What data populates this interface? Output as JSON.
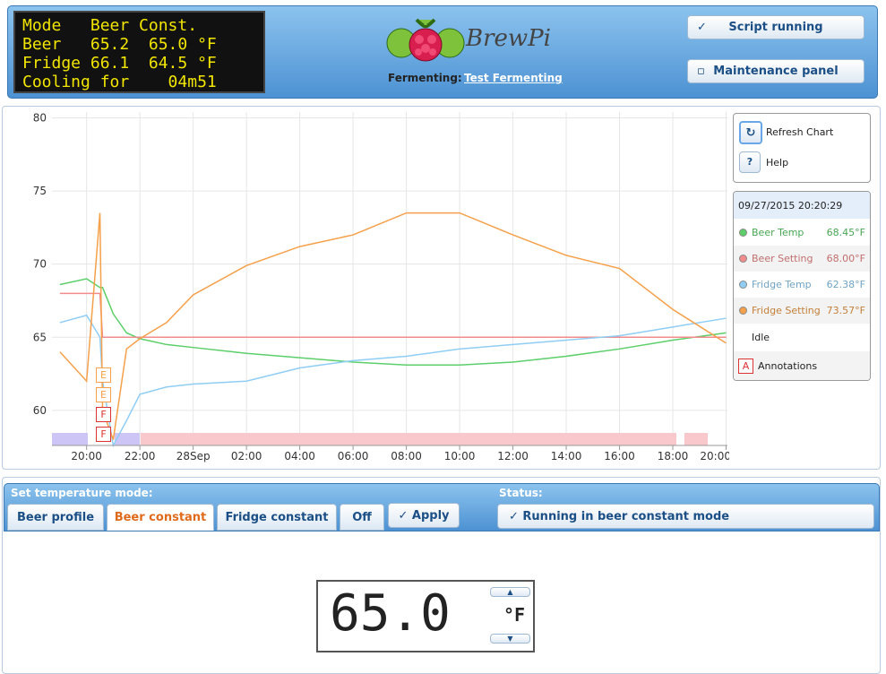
{
  "header": {
    "lcd": [
      "Mode   Beer Const.",
      "Beer   65.2  65.0 °F",
      "Fridge 66.1  64.5 °F",
      "Cooling for    04m51"
    ],
    "logo": "BrewPi",
    "profile_label": "Fermenting:",
    "profile_name": "Test Fermenting",
    "buttons": [
      "Script running",
      "Maintenance panel"
    ]
  },
  "chart_controls": {
    "refresh": "Refresh Chart",
    "help_icon": "?",
    "help": "Help"
  },
  "legend": {
    "date": "09/27/2015 20:20:29",
    "readouts": [
      "68.45°F",
      "68.00°F",
      "62.38°F",
      "73.57°F"
    ],
    "state": "Idle",
    "annotations_icon": "A",
    "annotations": "Annotations"
  },
  "chart_data": {
    "type": "line",
    "annotation_markers": [
      "E",
      "E",
      "F",
      "F"
    ],
    "x": [
      -1,
      0,
      0.5,
      0.6,
      1,
      1.5,
      2,
      3,
      4,
      6,
      8,
      10,
      12,
      14,
      16,
      18,
      20,
      22,
      24
    ],
    "xlim": [
      -1.3,
      24.05
    ],
    "xticks": [
      {
        "value": 0,
        "label": "20:00"
      },
      {
        "value": 2,
        "label": "22:00"
      },
      {
        "value": 4,
        "label": "28Sep"
      },
      {
        "value": 6,
        "label": "02:00"
      },
      {
        "value": 8,
        "label": "04:00"
      },
      {
        "value": 10,
        "label": "06:00"
      },
      {
        "value": 12,
        "label": "08:00"
      },
      {
        "value": 14,
        "label": "10:00"
      },
      {
        "value": 16,
        "label": "12:00"
      },
      {
        "value": 18,
        "label": "14:00"
      },
      {
        "value": 20,
        "label": "16:00"
      },
      {
        "value": 22,
        "label": "18:00"
      },
      {
        "value": 24,
        "label": "20:00"
      }
    ],
    "ylim": [
      57.6,
      80.4
    ],
    "yticks": [
      60,
      65,
      70,
      75,
      80
    ],
    "grid": true,
    "series": [
      {
        "name": "Beer Temp",
        "color": "#5ccf6a",
        "values": [
          68.6,
          69,
          68.4,
          68.4,
          66.6,
          65.3,
          64.9,
          64.5,
          64.3,
          63.9,
          63.6,
          63.3,
          63.1,
          63.1,
          63.3,
          63.7,
          64.2,
          64.8,
          65.3
        ]
      },
      {
        "name": "Beer Setting",
        "color": "#f28b8b",
        "values": [
          68,
          68,
          68,
          65,
          65,
          65,
          65,
          65,
          65,
          65,
          65,
          65,
          65,
          65,
          65,
          65,
          65,
          65,
          65
        ]
      },
      {
        "name": "Fridge Temp",
        "color": "#8fcdf5",
        "values": [
          66,
          66.5,
          65,
          62,
          57.6,
          59.3,
          61.1,
          61.6,
          61.8,
          62,
          62.9,
          63.4,
          63.7,
          64.2,
          64.5,
          64.8,
          65.1,
          65.7,
          66.3
        ]
      },
      {
        "name": "Fridge Setting",
        "color": "#f5a04a",
        "values": [
          64,
          62,
          73.5,
          60,
          58,
          64.2,
          64.9,
          66,
          67.9,
          69.9,
          71.2,
          72,
          73.5,
          73.5,
          72,
          70.6,
          69.7,
          66.9,
          64.6
        ]
      }
    ]
  },
  "mode": {
    "label": "Set temperature mode:",
    "tabs": [
      "Beer profile",
      "Beer constant",
      "Fridge constant",
      "Off"
    ],
    "apply": "Apply",
    "status_label": "Status:",
    "status": "Running in beer constant mode"
  },
  "setpoint": {
    "value": "65.0",
    "unit": "°F"
  }
}
